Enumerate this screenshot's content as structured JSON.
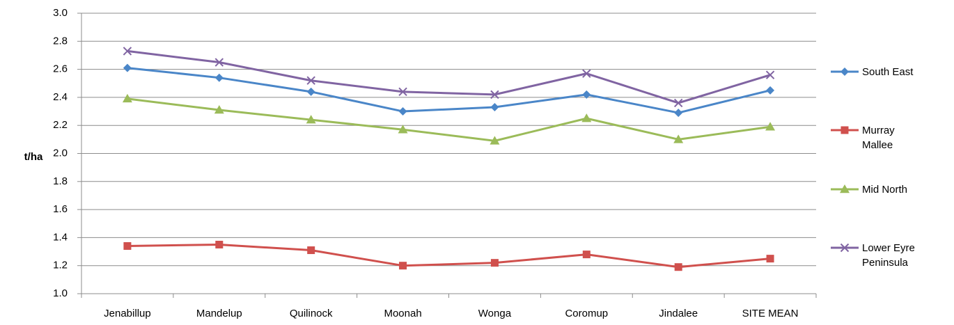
{
  "chart_data": {
    "type": "line",
    "title": "",
    "xlabel": "",
    "ylabel": "t/ha",
    "ylim": [
      1.0,
      3.0
    ],
    "ytick_step": 0.2,
    "grid": true,
    "legend_position": "right",
    "categories": [
      "Jenabillup",
      "Mandelup",
      "Quilinock",
      "Moonah",
      "Wonga",
      "Coromup",
      "Jindalee",
      "SITE MEAN"
    ],
    "series": [
      {
        "name": "South East",
        "name_lines": [
          "South East"
        ],
        "color": "#4a86c8",
        "marker": "diamond",
        "values": [
          2.61,
          2.54,
          2.44,
          2.3,
          2.33,
          2.42,
          2.29,
          2.45
        ]
      },
      {
        "name": "Murray Mallee",
        "name_lines": [
          "Murray",
          "Mallee"
        ],
        "color": "#d0504d",
        "marker": "square",
        "values": [
          1.34,
          1.35,
          1.31,
          1.2,
          1.22,
          1.28,
          1.19,
          1.25
        ]
      },
      {
        "name": "Mid North",
        "name_lines": [
          "Mid North"
        ],
        "color": "#9bbb59",
        "marker": "triangle",
        "values": [
          2.39,
          2.31,
          2.24,
          2.17,
          2.09,
          2.25,
          2.1,
          2.19
        ]
      },
      {
        "name": "Lower Eyre Peninsula",
        "name_lines": [
          "Lower Eyre",
          "Peninsula"
        ],
        "color": "#8064a2",
        "marker": "x",
        "values": [
          2.73,
          2.65,
          2.52,
          2.44,
          2.42,
          2.57,
          2.36,
          2.56
        ]
      }
    ]
  }
}
